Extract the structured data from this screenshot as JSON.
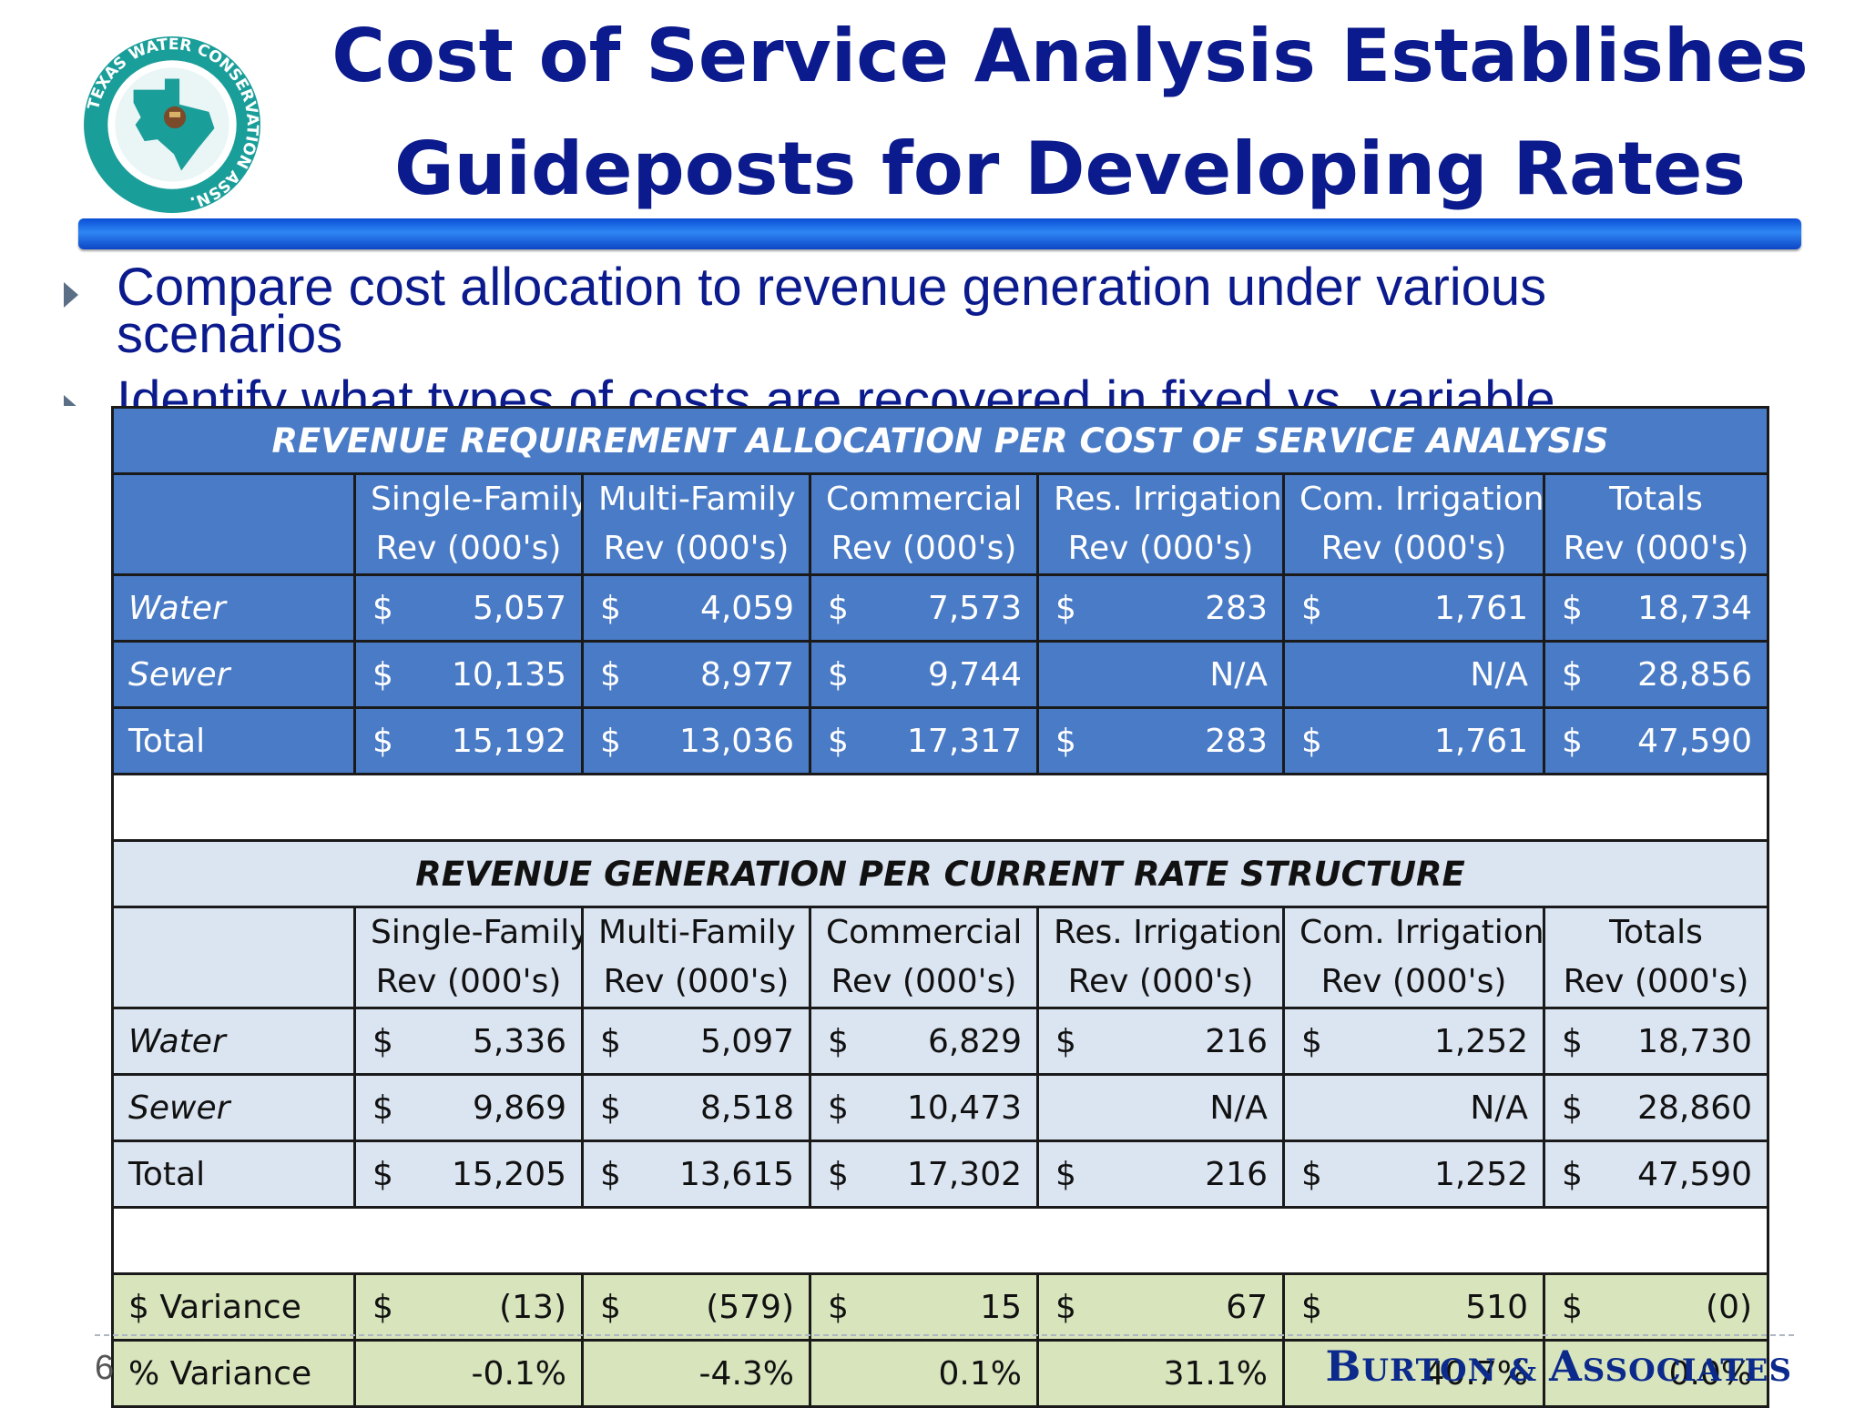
{
  "slide": {
    "title_line1": "Cost of Service Analysis Establishes",
    "title_line2": "Guideposts for Developing Rates",
    "bullets": [
      "Compare cost allocation to revenue generation under various scenarios",
      "Identify what types of costs are recovered in fixed vs. variable"
    ],
    "page_number": "6",
    "brand": {
      "b": "B",
      "urton": "URTON",
      "amp": " & ",
      "a": "A",
      "ssociates": "SSOCIATES"
    },
    "logo": {
      "text_top": "TEXAS WATER",
      "text_right": "CONSERVATION ASSN.",
      "colors": {
        "ring": "#1a9e9a",
        "inner": "#ffffff",
        "texas": "#1a9e9a",
        "mark": "#7a4a2a"
      }
    }
  },
  "columns": [
    {
      "line1": "Single-Family",
      "line2": "Rev (000's)"
    },
    {
      "line1": "Multi-Family",
      "line2": "Rev (000's)"
    },
    {
      "line1": "Commercial",
      "line2": "Rev (000's)"
    },
    {
      "line1": "Res. Irrigation",
      "line2": "Rev (000's)"
    },
    {
      "line1": "Com. Irrigation",
      "line2": "Rev (000's)"
    },
    {
      "line1": "Totals",
      "line2": "Rev (000's)"
    }
  ],
  "allocation": {
    "heading": "REVENUE REQUIREMENT ALLOCATION PER COST OF SERVICE ANALYSIS",
    "rows": [
      {
        "label": "Water",
        "cells": [
          {
            "cur": "$",
            "val": "5,057"
          },
          {
            "cur": "$",
            "val": "4,059"
          },
          {
            "cur": "$",
            "val": "7,573"
          },
          {
            "cur": "$",
            "val": "283"
          },
          {
            "cur": "$",
            "val": "1,761"
          },
          {
            "cur": "$",
            "val": "18,734"
          }
        ]
      },
      {
        "label": "Sewer",
        "cells": [
          {
            "cur": "$",
            "val": "10,135"
          },
          {
            "cur": "$",
            "val": "8,977"
          },
          {
            "cur": "$",
            "val": "9,744"
          },
          {
            "cur": "",
            "val": "N/A"
          },
          {
            "cur": "",
            "val": "N/A"
          },
          {
            "cur": "$",
            "val": "28,856"
          }
        ]
      },
      {
        "label": "Total",
        "cells": [
          {
            "cur": "$",
            "val": "15,192"
          },
          {
            "cur": "$",
            "val": "13,036"
          },
          {
            "cur": "$",
            "val": "17,317"
          },
          {
            "cur": "$",
            "val": "283"
          },
          {
            "cur": "$",
            "val": "1,761"
          },
          {
            "cur": "$",
            "val": "47,590"
          }
        ]
      }
    ]
  },
  "generation": {
    "heading": "REVENUE GENERATION PER CURRENT RATE STRUCTURE",
    "rows": [
      {
        "label": "Water",
        "cells": [
          {
            "cur": "$",
            "val": "5,336"
          },
          {
            "cur": "$",
            "val": "5,097"
          },
          {
            "cur": "$",
            "val": "6,829"
          },
          {
            "cur": "$",
            "val": "216"
          },
          {
            "cur": "$",
            "val": "1,252"
          },
          {
            "cur": "$",
            "val": "18,730"
          }
        ]
      },
      {
        "label": "Sewer",
        "cells": [
          {
            "cur": "$",
            "val": "9,869"
          },
          {
            "cur": "$",
            "val": "8,518"
          },
          {
            "cur": "$",
            "val": "10,473"
          },
          {
            "cur": "",
            "val": "N/A"
          },
          {
            "cur": "",
            "val": "N/A"
          },
          {
            "cur": "$",
            "val": "28,860"
          }
        ]
      },
      {
        "label": "Total",
        "cells": [
          {
            "cur": "$",
            "val": "15,205"
          },
          {
            "cur": "$",
            "val": "13,615"
          },
          {
            "cur": "$",
            "val": "17,302"
          },
          {
            "cur": "$",
            "val": "216"
          },
          {
            "cur": "$",
            "val": "1,252"
          },
          {
            "cur": "$",
            "val": "47,590"
          }
        ]
      }
    ]
  },
  "variance": {
    "dollar": {
      "label": "$ Variance",
      "cells": [
        {
          "cur": "$",
          "val": "(13)"
        },
        {
          "cur": "$",
          "val": "(579)"
        },
        {
          "cur": "$",
          "val": "15"
        },
        {
          "cur": "$",
          "val": "67"
        },
        {
          "cur": "$",
          "val": "510"
        },
        {
          "cur": "$",
          "val": "(0)"
        }
      ]
    },
    "percent": {
      "label": "% Variance",
      "values": [
        "-0.1%",
        "-4.3%",
        "0.1%",
        "31.1%",
        "40.7%",
        "0.0%"
      ]
    }
  },
  "colors": {
    "title": "#0b1a8c",
    "allocation_fill": "#4a7bc6",
    "generation_fill": "#dbe4f1",
    "variance_fill": "#d8e4bc"
  }
}
